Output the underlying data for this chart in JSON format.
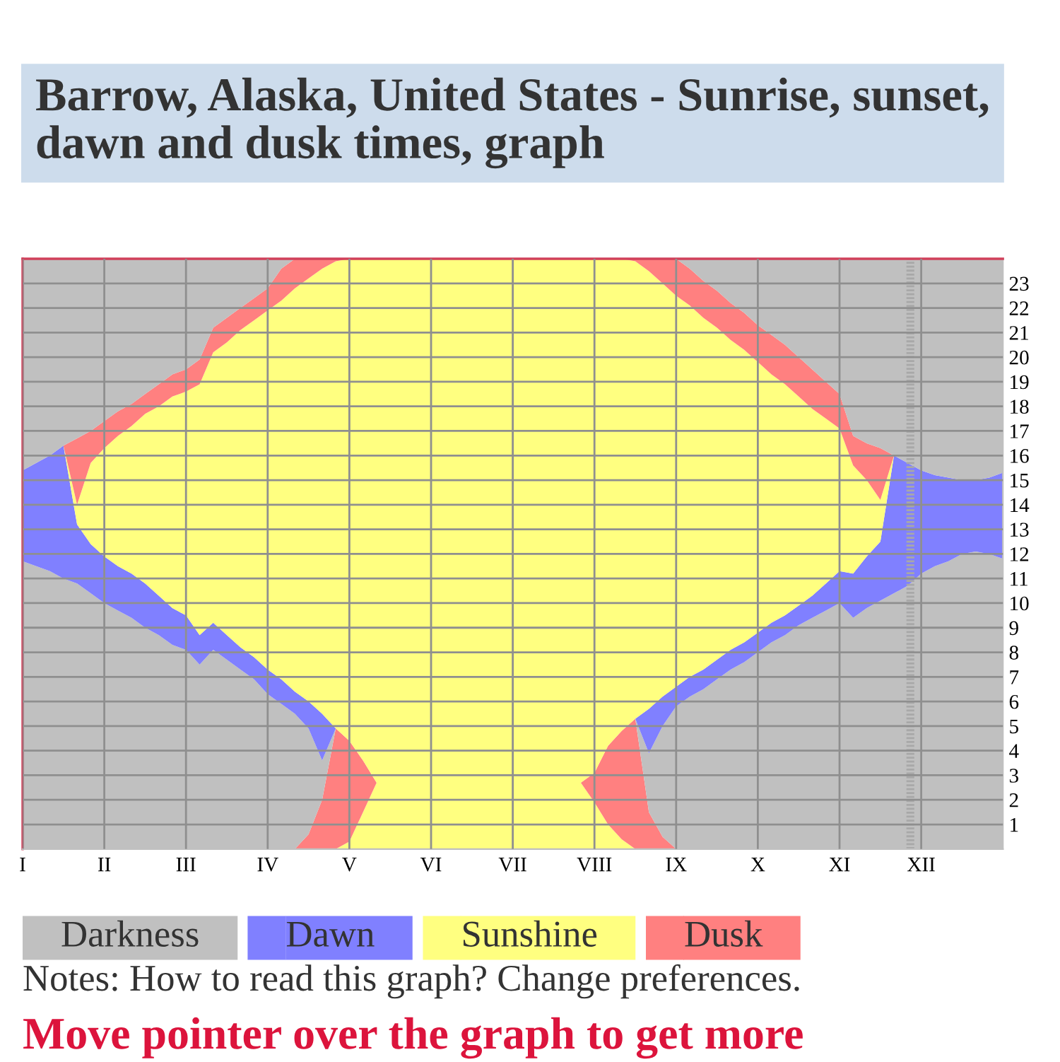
{
  "chart_data": {
    "type": "area",
    "stacked": true,
    "title": "Barrow, Alaska, United States - Sunrise, sunset, dawn and dusk times, graph",
    "categories": [
      "I",
      null,
      null,
      null,
      null,
      null,
      "II",
      null,
      null,
      null,
      null,
      null,
      "III",
      null,
      null,
      null,
      null,
      null,
      "IV",
      null,
      null,
      null,
      null,
      null,
      "V",
      null,
      null,
      null,
      null,
      null,
      "VI",
      null,
      null,
      null,
      null,
      null,
      "VII",
      null,
      null,
      null,
      null,
      null,
      "VIII",
      null,
      null,
      null,
      null,
      null,
      "IX",
      null,
      null,
      null,
      null,
      null,
      "X",
      null,
      null,
      null,
      null,
      null,
      "XI",
      null,
      null,
      null,
      null,
      null,
      "XII",
      null,
      null,
      null,
      null,
      null,
      null
    ],
    "series": [
      {
        "color": "#ffff80",
        "values": [
          0,
          0,
          0,
          0,
          0,
          0,
          0,
          0,
          0,
          0,
          0,
          0,
          0,
          0,
          0,
          0,
          0,
          0,
          0,
          0,
          0,
          0,
          0,
          0,
          0.3,
          1.5,
          2.7,
          2.7,
          2.7,
          2.7,
          2.7,
          2.7,
          2.7,
          2.7,
          2.7,
          2.7,
          2.7,
          2.7,
          2.7,
          2.7,
          2.7,
          2.7,
          1.9,
          1.0,
          0.4,
          0,
          0,
          0,
          0,
          0,
          0,
          0,
          0,
          0,
          0,
          0,
          0,
          0,
          0,
          0,
          0,
          0,
          0,
          0,
          0,
          0,
          0,
          0,
          0,
          0,
          0,
          0,
          0
        ]
      },
      {
        "color": "#ff8080",
        "values": [
          0,
          0,
          0,
          0,
          0,
          0,
          0,
          0,
          0,
          0,
          0,
          0,
          0,
          0,
          0,
          0,
          0,
          0,
          0,
          0,
          0,
          0.6,
          2.0,
          4.9,
          4.1,
          2.1,
          0,
          0,
          0,
          0,
          0,
          0,
          0,
          0,
          0,
          0,
          0,
          0,
          0,
          0,
          0,
          0,
          1.2,
          3.2,
          4.4,
          5.3,
          1.5,
          0.5,
          0,
          0,
          0,
          0,
          0,
          0,
          0,
          0,
          0,
          0,
          0,
          0,
          0,
          0,
          0,
          0,
          0,
          0,
          0,
          0,
          0,
          0,
          0,
          0,
          0
        ]
      },
      {
        "name": "Darkness",
        "color": "#c0c0c0",
        "values": [
          11.7,
          11.5,
          11.3,
          11.0,
          10.8,
          10.4,
          10.0,
          9.7,
          9.4,
          9.0,
          8.7,
          8.3,
          8.1,
          7.5,
          8.1,
          7.7,
          7.3,
          6.9,
          6.3,
          5.9,
          5.5,
          4.3,
          1.6,
          0,
          0,
          0,
          0,
          0,
          0,
          0,
          0,
          0,
          0,
          0,
          0,
          0,
          0,
          0,
          0,
          0,
          0,
          0,
          0,
          0,
          0,
          0,
          2.4,
          4.5,
          5.8,
          6.2,
          6.5,
          6.9,
          7.3,
          7.6,
          8.0,
          8.4,
          8.7,
          9.1,
          9.4,
          9.7,
          10.0,
          9.4,
          9.8,
          10.1,
          10.4,
          10.7,
          11.2,
          11.5,
          11.7,
          12.0,
          12.1,
          12.0,
          11.8
        ]
      },
      {
        "name": "Dawn",
        "color": "#8080ff",
        "values": [
          3.7,
          4.2,
          4.7,
          5.4,
          2.4,
          2.0,
          1.9,
          1.8,
          1.8,
          1.8,
          1.6,
          1.5,
          1.4,
          1.2,
          1.1,
          1.0,
          0.9,
          0.9,
          1.0,
          1.0,
          0.9,
          1.1,
          1.9,
          0,
          0,
          0,
          0,
          0,
          0,
          0,
          0,
          0,
          0,
          0,
          0,
          0,
          0,
          0,
          0,
          0,
          0,
          0,
          0,
          0,
          0,
          0,
          1.8,
          1.2,
          0.8,
          0.8,
          0.8,
          0.8,
          0.8,
          0.8,
          0.8,
          0.8,
          0.8,
          0.8,
          0.9,
          1.1,
          1.3,
          1.8,
          2.1,
          2.4,
          5.6,
          5.0,
          4.2,
          3.7,
          3.4,
          3.0,
          2.9,
          3.1,
          3.5
        ]
      },
      {
        "name": "Sunshine",
        "color": "#ffff80",
        "values": [
          0,
          0,
          0,
          0,
          0.8,
          3.3,
          4.4,
          5.3,
          6.0,
          6.9,
          7.7,
          8.6,
          9.1,
          10.2,
          11.0,
          11.9,
          12.9,
          13.7,
          14.6,
          15.4,
          16.4,
          17.2,
          18.1,
          19.0,
          19.6,
          20.4,
          21.3,
          21.3,
          21.3,
          21.3,
          21.3,
          21.3,
          21.3,
          21.3,
          21.3,
          21.3,
          21.3,
          21.3,
          21.3,
          21.3,
          21.3,
          21.3,
          20.9,
          19.8,
          19.2,
          18.6,
          17.8,
          16.8,
          15.9,
          15.1,
          14.3,
          13.5,
          12.6,
          11.9,
          11.0,
          10.1,
          9.4,
          8.5,
          7.6,
          6.7,
          5.8,
          4.4,
          3.1,
          1.7,
          0,
          0,
          0,
          0,
          0,
          0,
          0,
          0,
          0
        ]
      },
      {
        "name": "Dusk",
        "color": "#ff8080",
        "values": [
          0,
          0,
          0,
          0,
          2.7,
          1.3,
          1.1,
          1.0,
          0.9,
          0.8,
          0.9,
          0.9,
          0.9,
          1.0,
          1.0,
          1.0,
          0.9,
          0.9,
          0.9,
          1.3,
          1.2,
          0.8,
          0.4,
          0.1,
          0,
          0,
          0,
          0,
          0,
          0,
          0,
          0,
          0,
          0,
          0,
          0,
          0,
          0,
          0,
          0,
          0,
          0,
          0,
          0,
          0,
          0.1,
          0.5,
          1.0,
          1.5,
          1.5,
          1.5,
          1.5,
          1.5,
          1.5,
          1.5,
          1.6,
          1.6,
          1.6,
          1.6,
          1.5,
          1.4,
          1.2,
          1.5,
          2.1,
          0,
          0,
          0,
          0,
          0,
          0,
          0,
          0,
          0
        ]
      },
      {
        "color": "#c0c0c0",
        "values": [
          8.6,
          8.3,
          8.0,
          7.6,
          7.3,
          7.0,
          6.6,
          6.2,
          5.9,
          5.5,
          5.1,
          4.7,
          4.5,
          4.1,
          2.8,
          2.4,
          2.0,
          1.6,
          1.2,
          0.4,
          0,
          0,
          0,
          0,
          0,
          0,
          0,
          0,
          0,
          0,
          0,
          0,
          0,
          0,
          0,
          0,
          0,
          0,
          0,
          0,
          0,
          0,
          0,
          0,
          0,
          0,
          0,
          0,
          0,
          0.4,
          0.9,
          1.3,
          1.8,
          2.2,
          2.7,
          3.1,
          3.5,
          4.0,
          4.5,
          5.0,
          5.5,
          7.2,
          7.5,
          7.7,
          8.0,
          8.3,
          8.6,
          8.8,
          8.9,
          9.0,
          9.0,
          8.9,
          8.7
        ]
      }
    ],
    "ylim": [
      0,
      24
    ],
    "yticks": [
      1,
      2,
      3,
      4,
      5,
      6,
      7,
      8,
      9,
      10,
      11,
      12,
      13,
      14,
      15,
      16,
      17,
      18,
      19,
      20,
      21,
      22,
      23
    ],
    "grid": true,
    "legend": "bottom",
    "annotations": [
      "Notes: How to read this graph? Change preferences.",
      "Move pointer over the graph to get more"
    ]
  }
}
